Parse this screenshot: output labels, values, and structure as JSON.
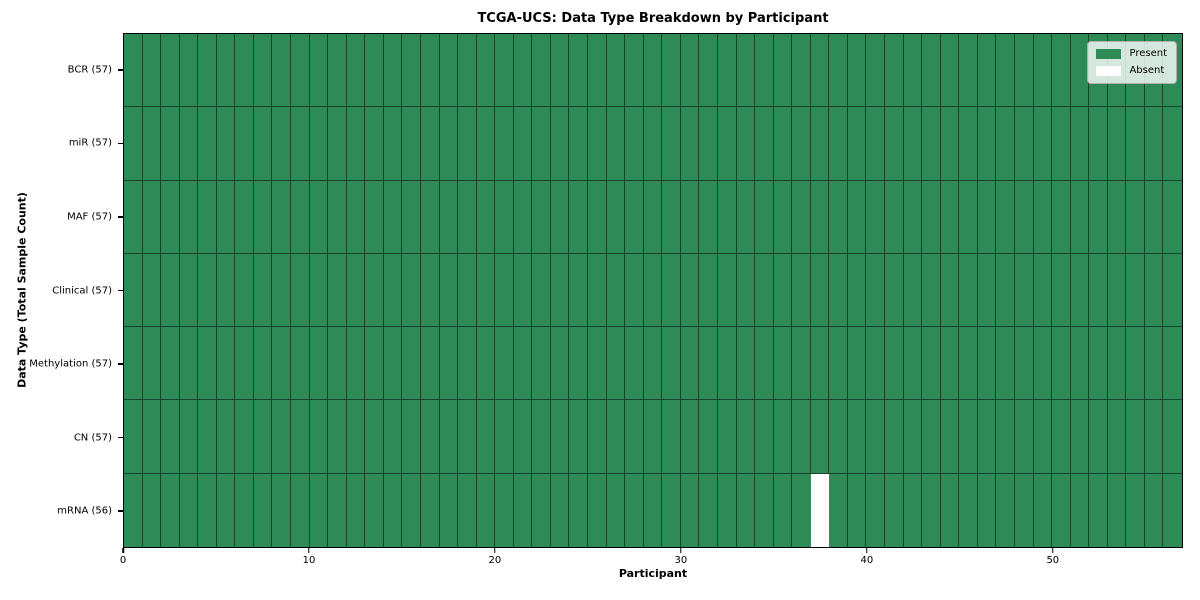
{
  "chart_data": {
    "type": "heatmap",
    "title": "TCGA-UCS: Data Type Breakdown by Participant",
    "xlabel": "Participant",
    "ylabel": "Data Type (Total Sample Count)",
    "n_participants": 57,
    "xlim": [
      0,
      57
    ],
    "x_ticks": [
      0,
      10,
      20,
      30,
      40,
      50
    ],
    "rows": [
      {
        "label": "BCR (57)",
        "data_type": "BCR",
        "total": 57,
        "absent_participants": []
      },
      {
        "label": "miR (57)",
        "data_type": "miR",
        "total": 57,
        "absent_participants": []
      },
      {
        "label": "MAF (57)",
        "data_type": "MAF",
        "total": 57,
        "absent_participants": []
      },
      {
        "label": "Clinical (57)",
        "data_type": "Clinical",
        "total": 57,
        "absent_participants": []
      },
      {
        "label": "Methylation (57)",
        "data_type": "Methylation",
        "total": 57,
        "absent_participants": []
      },
      {
        "label": "CN (57)",
        "data_type": "CN",
        "total": 57,
        "absent_participants": []
      },
      {
        "label": "mRNA (56)",
        "data_type": "mRNA",
        "total": 56,
        "absent_participants": [
          37
        ]
      }
    ],
    "legend": {
      "position": "upper right",
      "items": [
        {
          "label": "Present",
          "color": "#2E8B57"
        },
        {
          "label": "Absent",
          "color": "#FFFFFF"
        }
      ]
    },
    "colors": {
      "present": "#2E8B57",
      "absent": "#FFFFFF",
      "cell_border": "rgba(0,0,0,0.5)",
      "spine": "#000000"
    }
  }
}
